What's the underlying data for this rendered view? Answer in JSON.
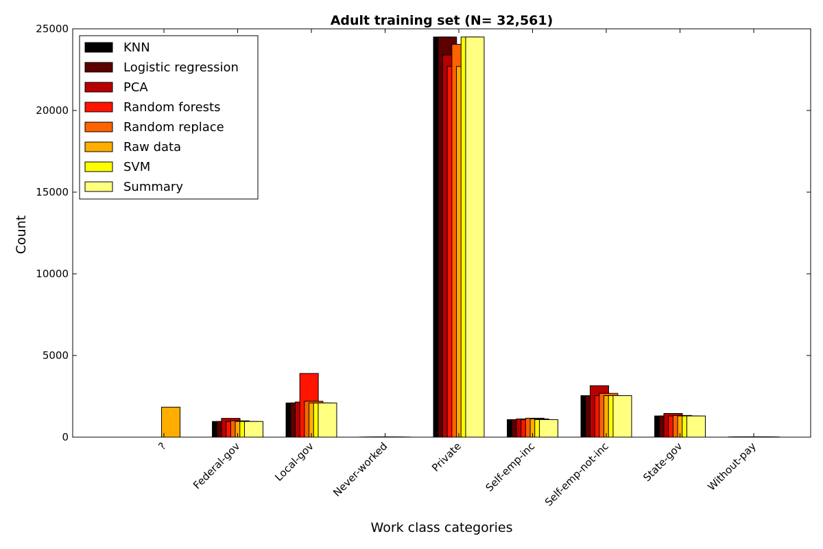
{
  "chart_data": {
    "type": "bar",
    "title": "Adult training set (N= 32,561)",
    "xlabel": "Work class categories",
    "ylabel": "Count",
    "ylim": [
      0,
      25000
    ],
    "yticks": [
      0,
      5000,
      10000,
      15000,
      20000,
      25000
    ],
    "grid": false,
    "legend_position": "top-left",
    "categories": [
      "?",
      "Federal-gov",
      "Local-gov",
      "Never-worked",
      "Private",
      "Self-emp-inc",
      "Self-emp-not-inc",
      "State-gov",
      "Without-pay"
    ],
    "series": [
      {
        "name": "KNN",
        "color": "#000000",
        "values": [
          0,
          960,
          2093,
          7,
          24500,
          1074,
          2541,
          1298,
          14
        ]
      },
      {
        "name": "Logistic regression",
        "color": "#5c0000",
        "values": [
          0,
          960,
          2093,
          7,
          24500,
          1074,
          2541,
          1298,
          14
        ]
      },
      {
        "name": "PCA",
        "color": "#b80000",
        "values": [
          0,
          1150,
          2150,
          7,
          23400,
          1116,
          3150,
          1450,
          14
        ]
      },
      {
        "name": "Random forests",
        "color": "#ff1400",
        "values": [
          0,
          960,
          3900,
          7,
          22700,
          1074,
          2541,
          1298,
          14
        ]
      },
      {
        "name": "Random replace",
        "color": "#ff6200",
        "values": [
          0,
          1000,
          2200,
          7,
          24050,
          1160,
          2680,
          1330,
          14
        ]
      },
      {
        "name": "Raw data",
        "color": "#ffae00",
        "values": [
          1836,
          960,
          2093,
          7,
          22696,
          1116,
          2541,
          1298,
          14
        ]
      },
      {
        "name": "SVM",
        "color": "#ffff00",
        "values": [
          0,
          960,
          2093,
          7,
          24500,
          1074,
          2541,
          1298,
          14
        ]
      },
      {
        "name": "Summary",
        "color": "#ffff80",
        "values": [
          0,
          960,
          2093,
          7,
          24500,
          1074,
          2541,
          1298,
          14
        ]
      }
    ]
  }
}
